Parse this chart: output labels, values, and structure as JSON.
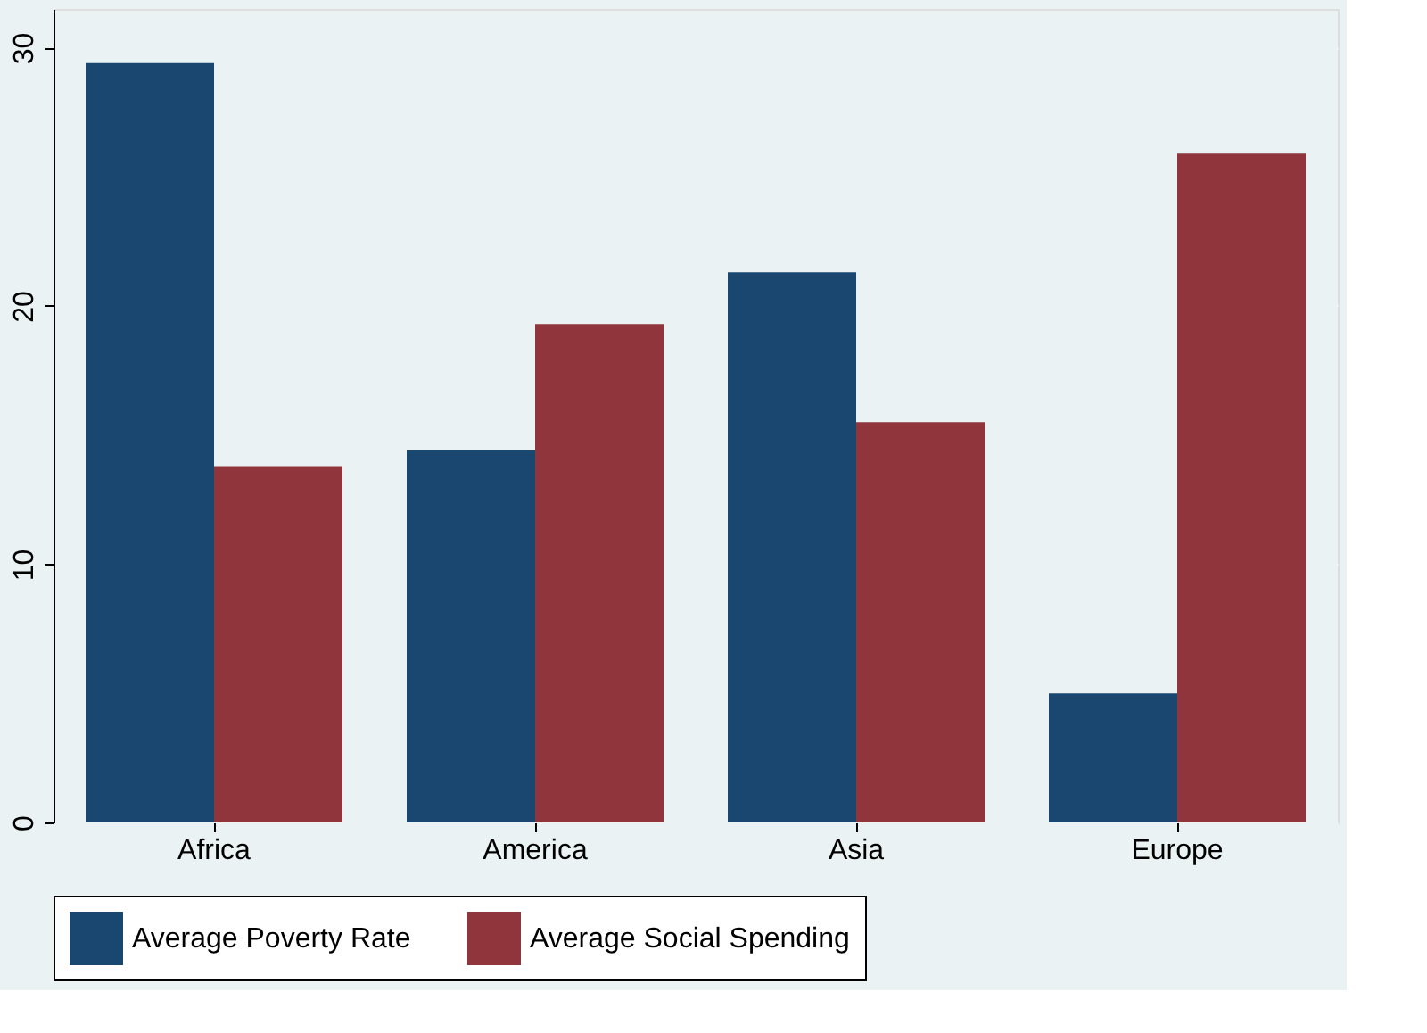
{
  "chart_data": {
    "type": "bar",
    "categories": [
      "Africa",
      "America",
      "Asia",
      "Europe"
    ],
    "series": [
      {
        "name": "Average Poverty Rate",
        "color": "#1a476f",
        "values": [
          29.4,
          14.4,
          21.3,
          5.0
        ]
      },
      {
        "name": "Average Social Spending",
        "color": "#90353b",
        "values": [
          13.8,
          19.3,
          15.5,
          25.9
        ]
      }
    ],
    "ylim": [
      0,
      31.5
    ],
    "yticks": [
      0,
      10,
      20,
      30
    ],
    "grid": "y",
    "legend": "bottom"
  }
}
